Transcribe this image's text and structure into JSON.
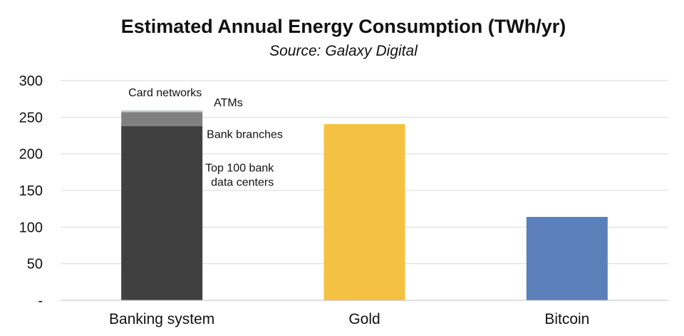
{
  "chart_data": {
    "type": "bar",
    "title": "Estimated Annual Energy Consumption (TWh/yr)",
    "subtitle": "Source: Galaxy Digital",
    "categories": [
      "Banking system",
      "Gold",
      "Bitcoin"
    ],
    "ylim": [
      0,
      300
    ],
    "yticks": [
      {
        "value": 0,
        "label": "-"
      },
      {
        "value": 50,
        "label": "50"
      },
      {
        "value": 100,
        "label": "100"
      },
      {
        "value": 150,
        "label": "150"
      },
      {
        "value": 200,
        "label": "200"
      },
      {
        "value": 250,
        "label": "250"
      },
      {
        "value": 300,
        "label": "300"
      }
    ],
    "grid": true,
    "banking_stack": [
      {
        "name": "Top 100 bank data centers",
        "label_lines": [
          "Top 100 bank",
          "data centers"
        ],
        "value": 238,
        "color": "#404040"
      },
      {
        "name": "Bank branches",
        "label_lines": [
          "Bank branches"
        ],
        "value": 19,
        "color": "#808080"
      },
      {
        "name": "ATMs",
        "label_lines": [
          "ATMs"
        ],
        "value": 2.3,
        "color": "#c9c9c9"
      },
      {
        "name": "Card networks",
        "label_lines": [
          "Card networks"
        ],
        "value": 0.6,
        "color": "#d7ecef"
      }
    ],
    "bars": [
      {
        "category": "Gold",
        "value": 240.6,
        "color": "#f4c142"
      },
      {
        "category": "Bitcoin",
        "value": 113.9,
        "color": "#5b7fb9"
      }
    ]
  }
}
